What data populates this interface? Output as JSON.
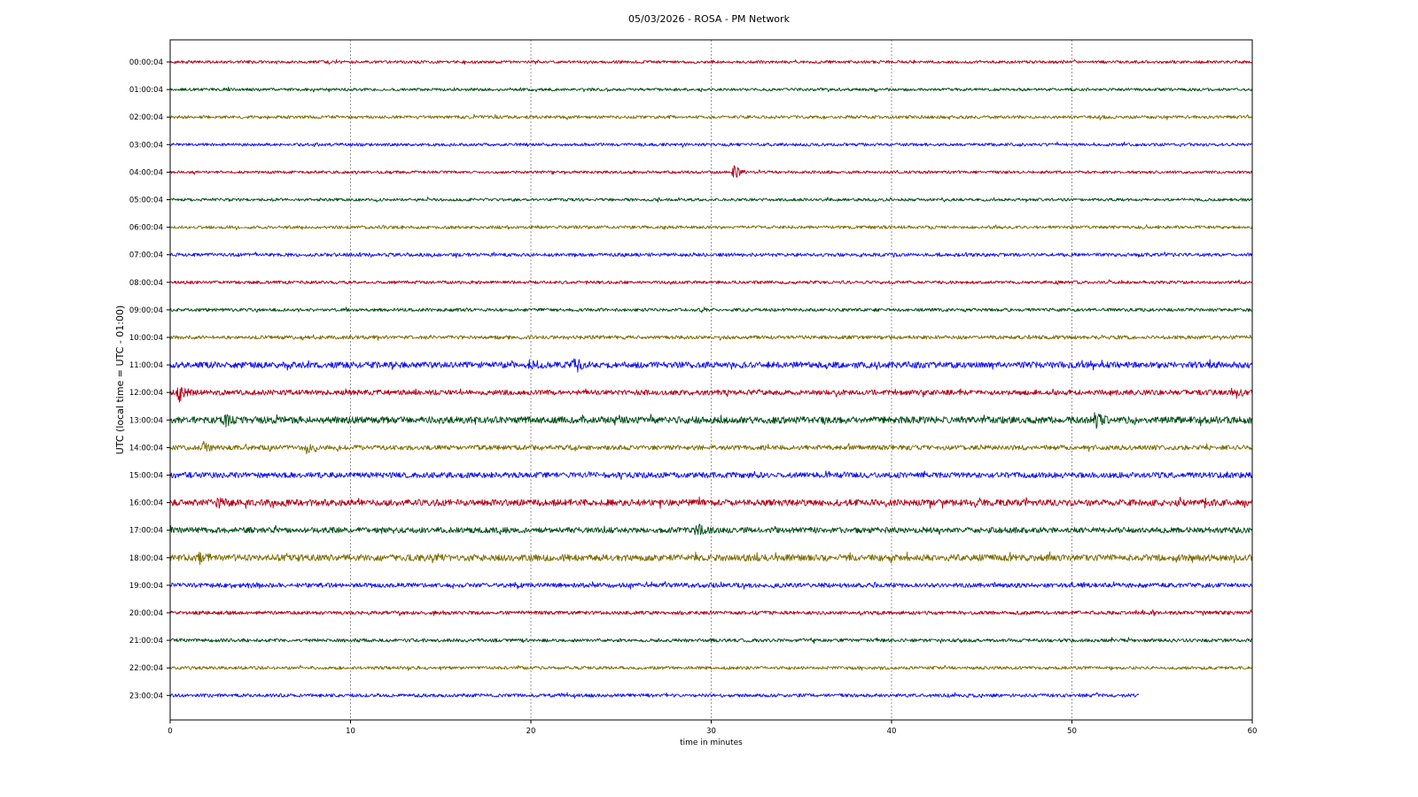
{
  "chart_data": {
    "type": "line",
    "title": "05/03/2026 - ROSA - PM Network",
    "xlabel": "time in minutes",
    "ylabel": "UTC (local time = UTC - 01:00)",
    "xlim": [
      0,
      60
    ],
    "x_ticks": [
      "0",
      "10",
      "20",
      "30",
      "40",
      "50",
      "60"
    ],
    "grid": "vertical dashed at each 10 minutes",
    "colors": [
      "#b00018",
      "#004d14",
      "#7d6b00",
      "#1010f0"
    ],
    "series": [
      {
        "name": "00:00:04",
        "end_minute": 60,
        "noise": 1.0
      },
      {
        "name": "01:00:04",
        "end_minute": 60,
        "noise": 1.0
      },
      {
        "name": "02:00:04",
        "end_minute": 60,
        "noise": 1.1
      },
      {
        "name": "03:00:04",
        "end_minute": 60,
        "noise": 1.1
      },
      {
        "name": "04:00:04",
        "end_minute": 60,
        "noise": 1.0,
        "events": [
          {
            "minute": 31.2,
            "amp": 9
          }
        ]
      },
      {
        "name": "05:00:04",
        "end_minute": 60,
        "noise": 1.0
      },
      {
        "name": "06:00:04",
        "end_minute": 60,
        "noise": 1.1
      },
      {
        "name": "07:00:04",
        "end_minute": 60,
        "noise": 1.2
      },
      {
        "name": "08:00:04",
        "end_minute": 60,
        "noise": 1.1
      },
      {
        "name": "09:00:04",
        "end_minute": 60,
        "noise": 1.1
      },
      {
        "name": "10:00:04",
        "end_minute": 60,
        "noise": 1.3
      },
      {
        "name": "11:00:04",
        "end_minute": 60,
        "noise": 2.2,
        "events": [
          {
            "minute": 20.0,
            "amp": 6
          },
          {
            "minute": 22.4,
            "amp": 7
          }
        ]
      },
      {
        "name": "12:00:04",
        "end_minute": 60,
        "noise": 1.8,
        "events": [
          {
            "minute": 0.5,
            "amp": 9
          },
          {
            "minute": 59.0,
            "amp": 6
          }
        ]
      },
      {
        "name": "13:00:04",
        "end_minute": 60,
        "noise": 2.4,
        "events": [
          {
            "minute": 3.0,
            "amp": 6
          },
          {
            "minute": 51.3,
            "amp": 7
          }
        ]
      },
      {
        "name": "14:00:04",
        "end_minute": 60,
        "noise": 1.7,
        "events": [
          {
            "minute": 1.8,
            "amp": 7
          },
          {
            "minute": 7.6,
            "amp": 6
          }
        ]
      },
      {
        "name": "15:00:04",
        "end_minute": 60,
        "noise": 2.0
      },
      {
        "name": "16:00:04",
        "end_minute": 60,
        "noise": 2.3,
        "events": [
          {
            "minute": 2.6,
            "amp": 6
          }
        ]
      },
      {
        "name": "17:00:04",
        "end_minute": 60,
        "noise": 2.0,
        "events": [
          {
            "minute": 29.2,
            "amp": 6
          }
        ]
      },
      {
        "name": "18:00:04",
        "end_minute": 60,
        "noise": 2.3,
        "events": [
          {
            "minute": 1.6,
            "amp": 8
          }
        ]
      },
      {
        "name": "19:00:04",
        "end_minute": 60,
        "noise": 1.6
      },
      {
        "name": "20:00:04",
        "end_minute": 60,
        "noise": 1.3
      },
      {
        "name": "21:00:04",
        "end_minute": 60,
        "noise": 1.2
      },
      {
        "name": "22:00:04",
        "end_minute": 60,
        "noise": 1.1
      },
      {
        "name": "23:00:04",
        "end_minute": 53.7,
        "noise": 1.2
      }
    ]
  }
}
